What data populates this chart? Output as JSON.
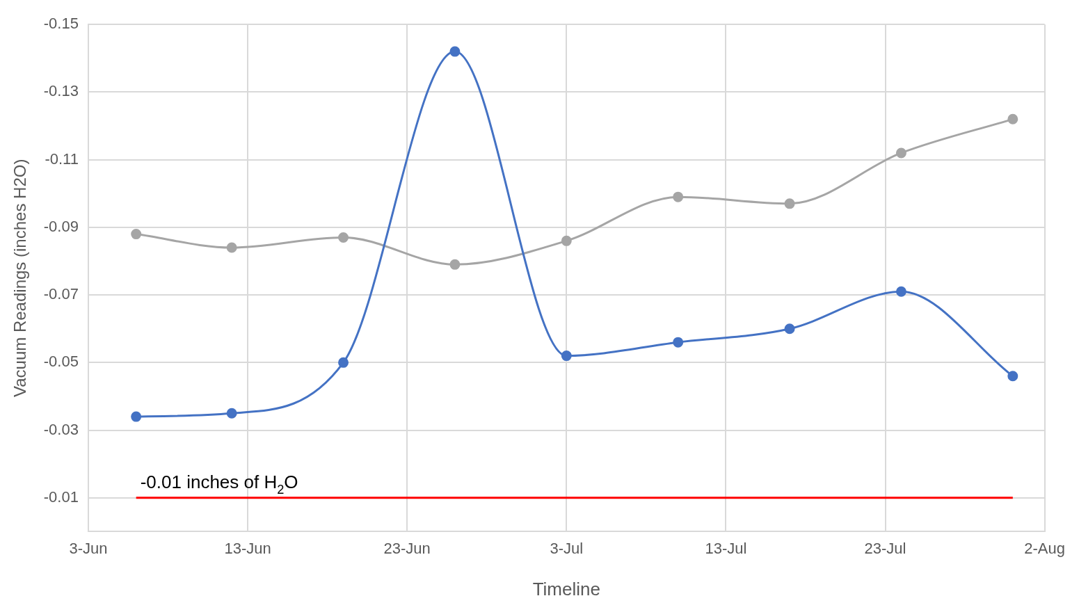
{
  "chart_data": {
    "type": "line",
    "xlabel": "Timeline",
    "ylabel": "Vacuum Readings (inches H2O)",
    "x": [
      "--06-06",
      "--06-12",
      "--06-19",
      "--06-26",
      "--07-03",
      "--07-10",
      "--07-17",
      "--07-24",
      "--07-31"
    ],
    "series": [
      {
        "color": "#4472c4",
        "values": [
          -0.034,
          -0.035,
          -0.05,
          -0.142,
          -0.052,
          -0.056,
          -0.06,
          -0.071,
          -0.046
        ]
      },
      {
        "color": "#a5a5a5",
        "values": [
          -0.088,
          -0.084,
          -0.087,
          -0.079,
          -0.086,
          -0.099,
          -0.097,
          -0.112,
          -0.122
        ]
      },
      {
        "color": "#ff0000",
        "marker": "none",
        "x": [
          "--06-06",
          "--07-31"
        ],
        "values": [
          -0.01,
          -0.01
        ]
      }
    ],
    "xlim": [
      "--06-03",
      "--08-02"
    ],
    "xticks": [
      {
        "value": "--06-03",
        "label": "3-Jun"
      },
      {
        "value": "--06-13",
        "label": "13-Jun"
      },
      {
        "value": "--06-23",
        "label": "23-Jun"
      },
      {
        "value": "--07-03",
        "label": "3-Jul"
      },
      {
        "value": "--07-13",
        "label": "13-Jul"
      },
      {
        "value": "--07-23",
        "label": "23-Jul"
      },
      {
        "value": "--08-02",
        "label": "2-Aug"
      }
    ],
    "ylim": [
      0,
      -0.15
    ],
    "yticks": [
      -0.15,
      -0.13,
      -0.11,
      -0.09,
      -0.07,
      -0.05,
      -0.03,
      -0.01
    ],
    "annotations": [
      {
        "text": "-0.01 inches of H$_{2}$O",
        "x": "--06-06",
        "y": -0.01
      }
    ],
    "grid": true,
    "legend": false,
    "marker": "circle",
    "line_style": "solid"
  }
}
